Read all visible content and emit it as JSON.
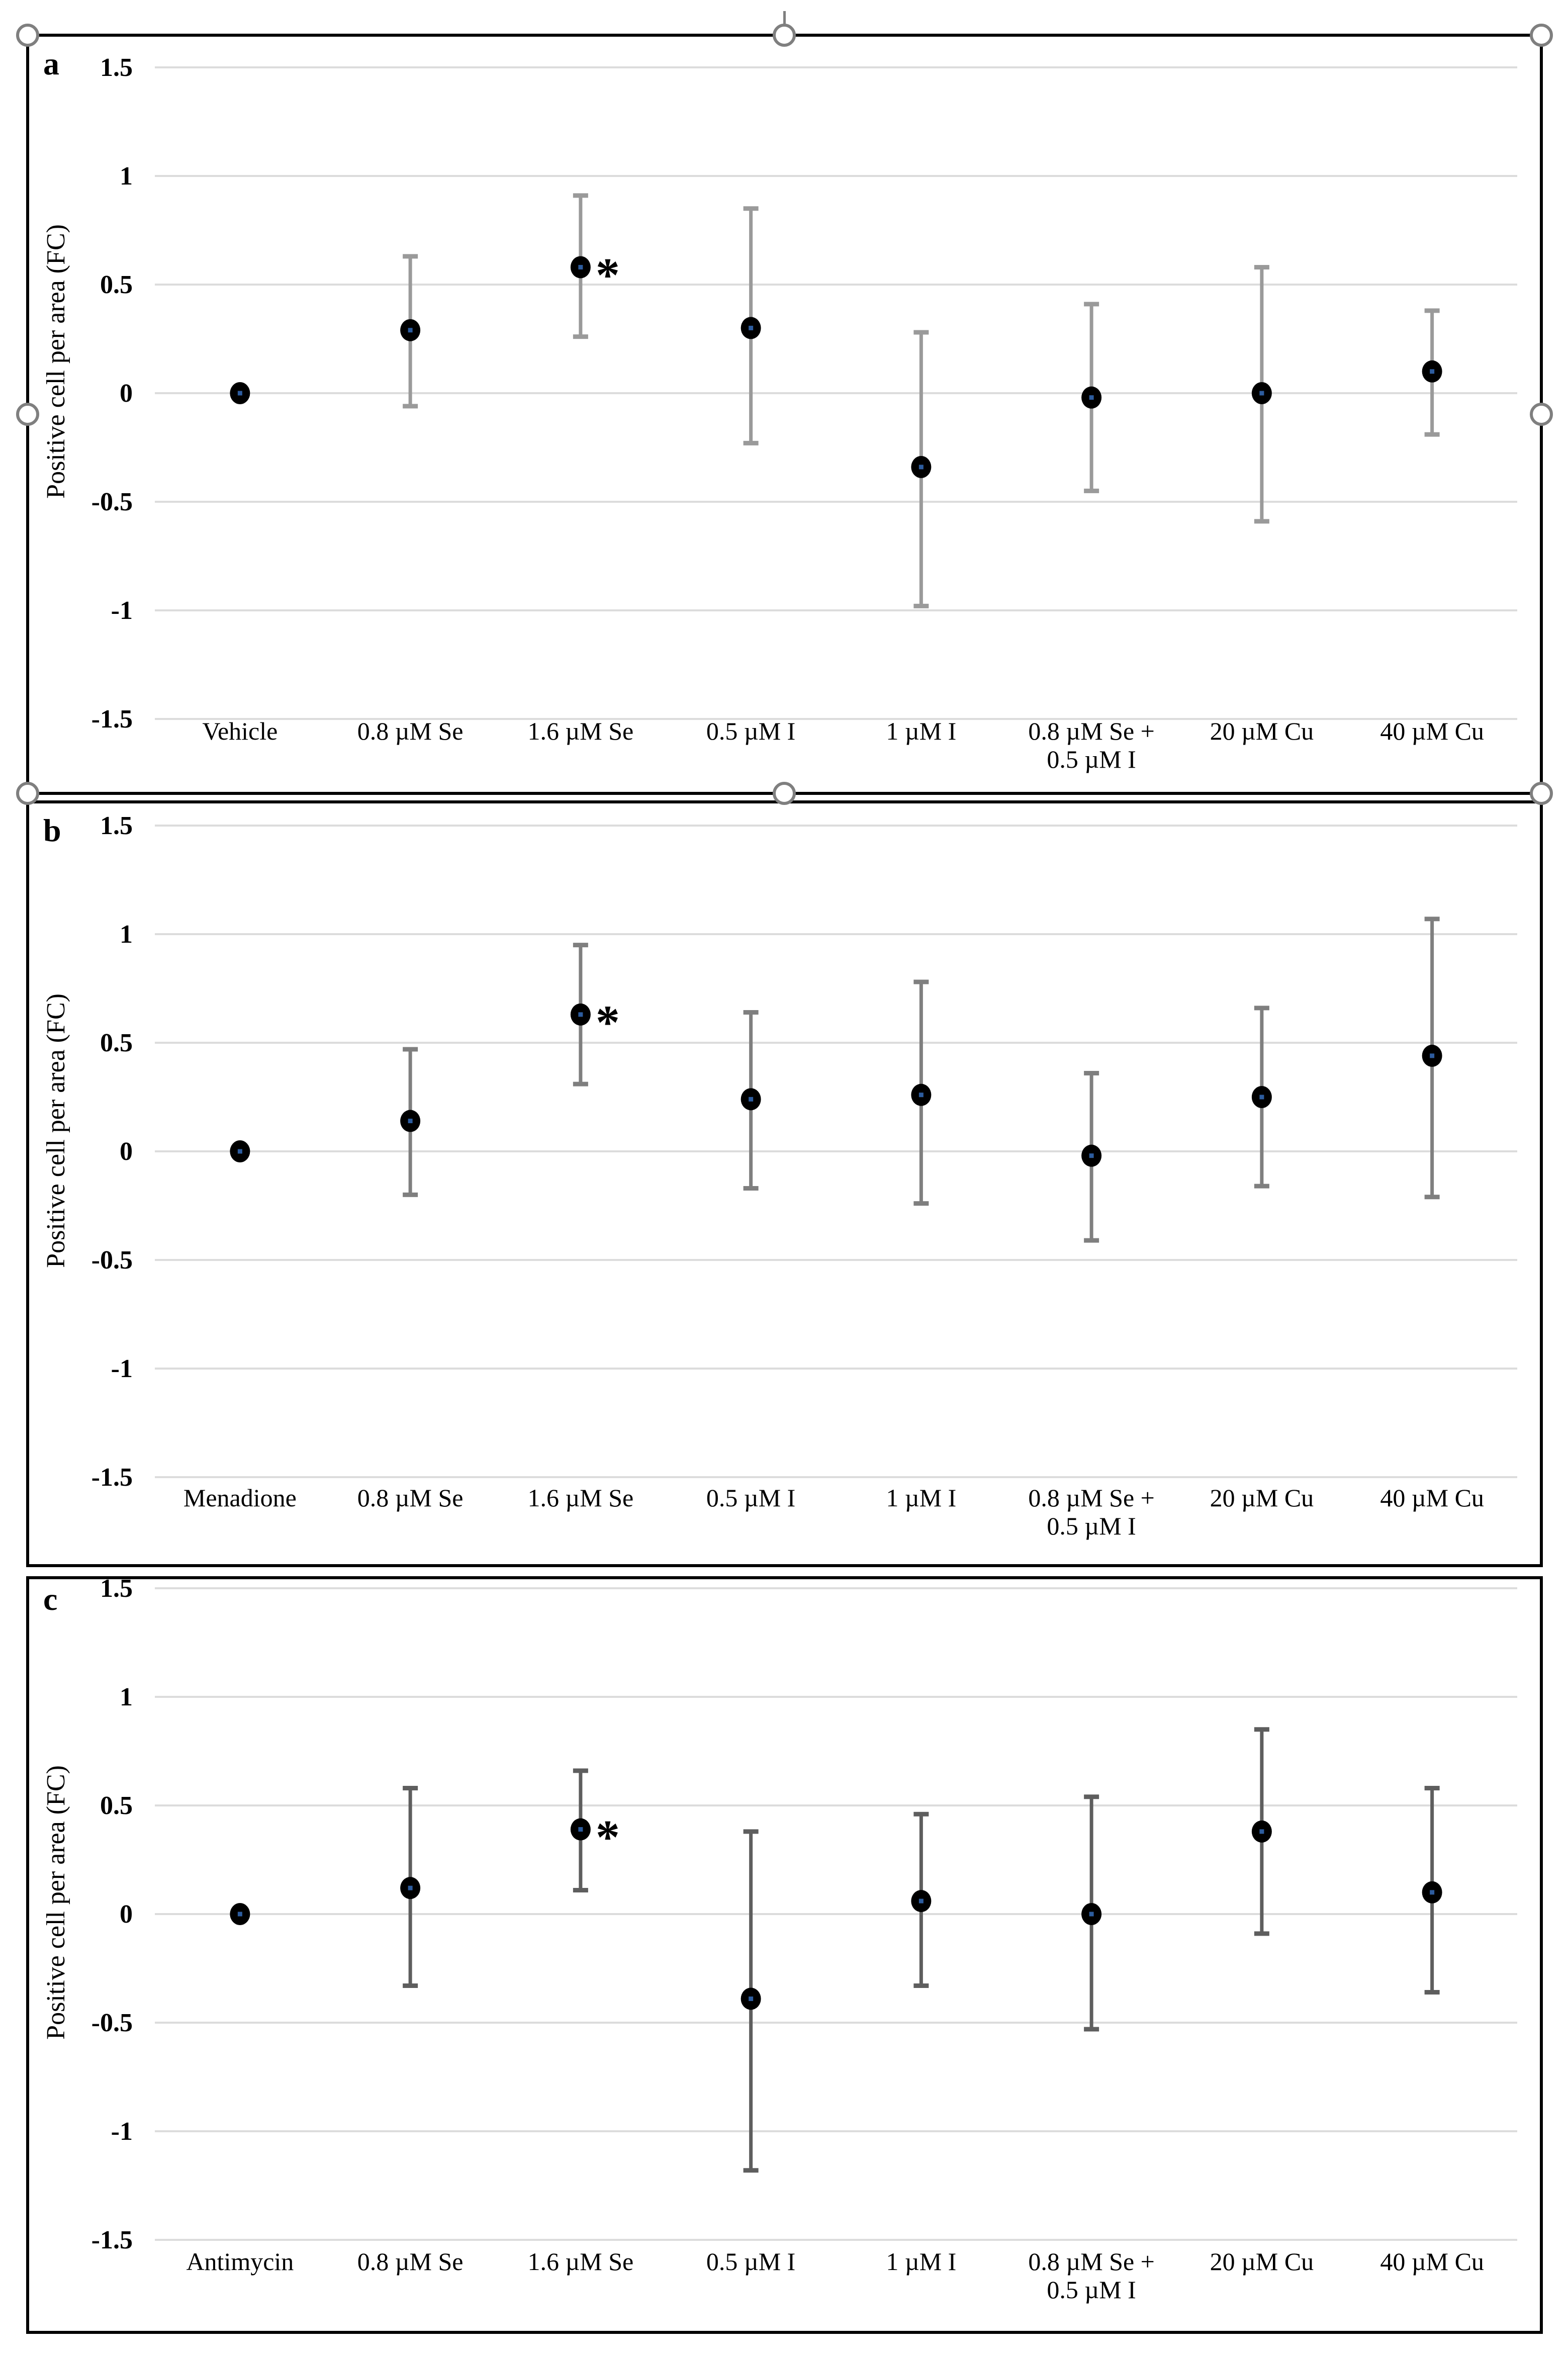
{
  "figure": {
    "description": "Three stacked scatter charts with error bars showing fold change of positive cells per area under oxidative challenges and trace-element treatments",
    "y_axis_title": "Positive cell per area (FC)",
    "y_tick_labels": [
      "1.5",
      "1",
      "0.5",
      "0",
      "-0.5",
      "-1",
      "-1.5"
    ],
    "significance_symbol": "*"
  },
  "style": {
    "gridline_color": "#dcdcdc",
    "marker_color": "#000000",
    "marker_center_color": "#2d5c9e",
    "text_color": "#000000",
    "panel_border_color": "#000000",
    "selection_handle_color": "#7f7f7f"
  },
  "selection": {
    "handles": [
      "top-left",
      "top-center",
      "top-right",
      "middle-left",
      "middle-right",
      "bottom-left",
      "bottom-center",
      "bottom-right"
    ]
  },
  "chart_data": [
    {
      "panel": "a",
      "letter": "a",
      "type": "scatter",
      "ylabel": "Positive cell per area (FC)",
      "ylim": [
        -1.5,
        1.5
      ],
      "yticks": [
        1.5,
        1,
        0.5,
        0,
        -0.5,
        -1,
        -1.5
      ],
      "grid": "horizontal",
      "legend": "none",
      "categories": [
        "Vehicle",
        "0.8 µM Se",
        "1.6 µM Se",
        "0.5 µM I",
        "1 µM I",
        "0.8 µM Se +\n0.5 µM I",
        "20 µM Cu",
        "40 µM Cu"
      ],
      "values": [
        0.0,
        0.29,
        0.58,
        0.3,
        -0.34,
        -0.02,
        0.0,
        0.1
      ],
      "err_low": [
        0.0,
        -0.06,
        0.26,
        -0.23,
        -0.98,
        -0.45,
        -0.59,
        -0.19
      ],
      "err_high": [
        0.0,
        0.63,
        0.91,
        0.85,
        0.28,
        0.41,
        0.58,
        0.38
      ],
      "significance": [
        "",
        "",
        "*",
        "",
        "",
        "",
        "",
        ""
      ],
      "error_bar_color": "#9a9a9a"
    },
    {
      "panel": "b",
      "letter": "b",
      "type": "scatter",
      "ylabel": "Positive cell per area (FC)",
      "ylim": [
        -1.5,
        1.5
      ],
      "yticks": [
        1.5,
        1,
        0.5,
        0,
        -0.5,
        -1,
        -1.5
      ],
      "grid": "horizontal",
      "legend": "none",
      "categories": [
        "Menadione",
        "0.8 µM Se",
        "1.6 µM Se",
        "0.5 µM I",
        "1 µM I",
        "0.8 µM Se +\n0.5 µM I",
        "20 µM Cu",
        "40 µM Cu"
      ],
      "values": [
        0.0,
        0.14,
        0.63,
        0.24,
        0.26,
        -0.02,
        0.25,
        0.44
      ],
      "err_low": [
        0.0,
        -0.2,
        0.31,
        -0.17,
        -0.24,
        -0.41,
        -0.16,
        -0.21
      ],
      "err_high": [
        0.0,
        0.47,
        0.95,
        0.64,
        0.78,
        0.36,
        0.66,
        1.07
      ],
      "significance": [
        "",
        "",
        "*",
        "",
        "",
        "",
        "",
        ""
      ],
      "error_bar_color": "#7f7f7f"
    },
    {
      "panel": "c",
      "letter": "c",
      "type": "scatter",
      "ylabel": "Positive cell per area (FC)",
      "ylim": [
        -1.5,
        1.5
      ],
      "yticks": [
        1.5,
        1,
        0.5,
        0,
        -0.5,
        -1,
        -1.5
      ],
      "grid": "horizontal",
      "legend": "none",
      "categories": [
        "Antimycin",
        "0.8 µM Se",
        "1.6 µM Se",
        "0.5 µM I",
        "1 µM I",
        "0.8 µM Se +\n0.5 µM I",
        "20 µM Cu",
        "40 µM Cu"
      ],
      "values": [
        0.0,
        0.12,
        0.39,
        -0.39,
        0.06,
        0.0,
        0.38,
        0.1
      ],
      "err_low": [
        0.0,
        -0.33,
        0.11,
        -1.18,
        -0.33,
        -0.53,
        -0.09,
        -0.36
      ],
      "err_high": [
        0.0,
        0.58,
        0.66,
        0.38,
        0.46,
        0.54,
        0.85,
        0.58
      ],
      "significance": [
        "",
        "",
        "*",
        "",
        "",
        "",
        "",
        ""
      ],
      "error_bar_color": "#5e5e5e"
    }
  ]
}
